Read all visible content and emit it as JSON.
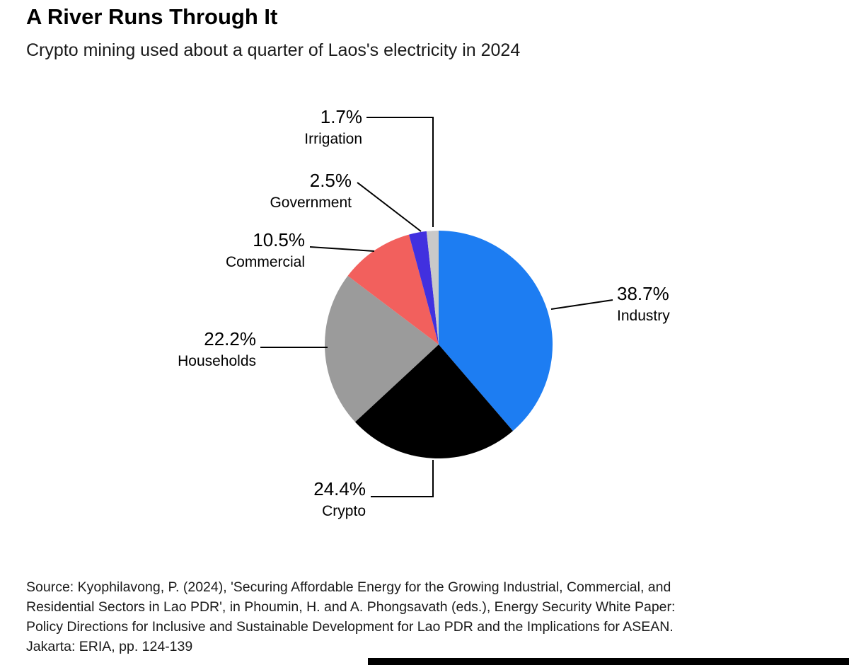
{
  "header": {
    "title": "A River Runs Through It",
    "subtitle": "Crypto mining used about a quarter of Laos's electricity in 2024"
  },
  "chart_data": {
    "type": "pie",
    "title": "A River Runs Through It",
    "subtitle": "Crypto mining used about a quarter of Laos's electricity in 2024",
    "unit": "%",
    "direction": "clockwise",
    "start_angle": "top",
    "slices": [
      {
        "name": "Industry",
        "value": 38.7,
        "value_label": "38.7%",
        "color": "#1d7df2"
      },
      {
        "name": "Crypto",
        "value": 24.4,
        "value_label": "24.4%",
        "color": "#000000"
      },
      {
        "name": "Households",
        "value": 22.2,
        "value_label": "22.2%",
        "color": "#9b9b9b"
      },
      {
        "name": "Commercial",
        "value": 10.5,
        "value_label": "10.5%",
        "color": "#f2605d"
      },
      {
        "name": "Government",
        "value": 2.5,
        "value_label": "2.5%",
        "color": "#4130df"
      },
      {
        "name": "Irrigation",
        "value": 1.7,
        "value_label": "1.7%",
        "color": "#c9c9c9"
      }
    ]
  },
  "source": {
    "lines": [
      "Source: Kyophilavong, P. (2024), 'Securing Affordable Energy for the Growing Industrial, Commercial, and",
      "Residential Sectors in Lao PDR', in Phoumin, H. and A. Phongsavath (eds.), Energy Security White Paper:",
      "Policy Directions for Inclusive and Sustainable Development for Lao PDR and the Implications for ASEAN.",
      "Jakarta: ERIA, pp. 124-139"
    ]
  }
}
